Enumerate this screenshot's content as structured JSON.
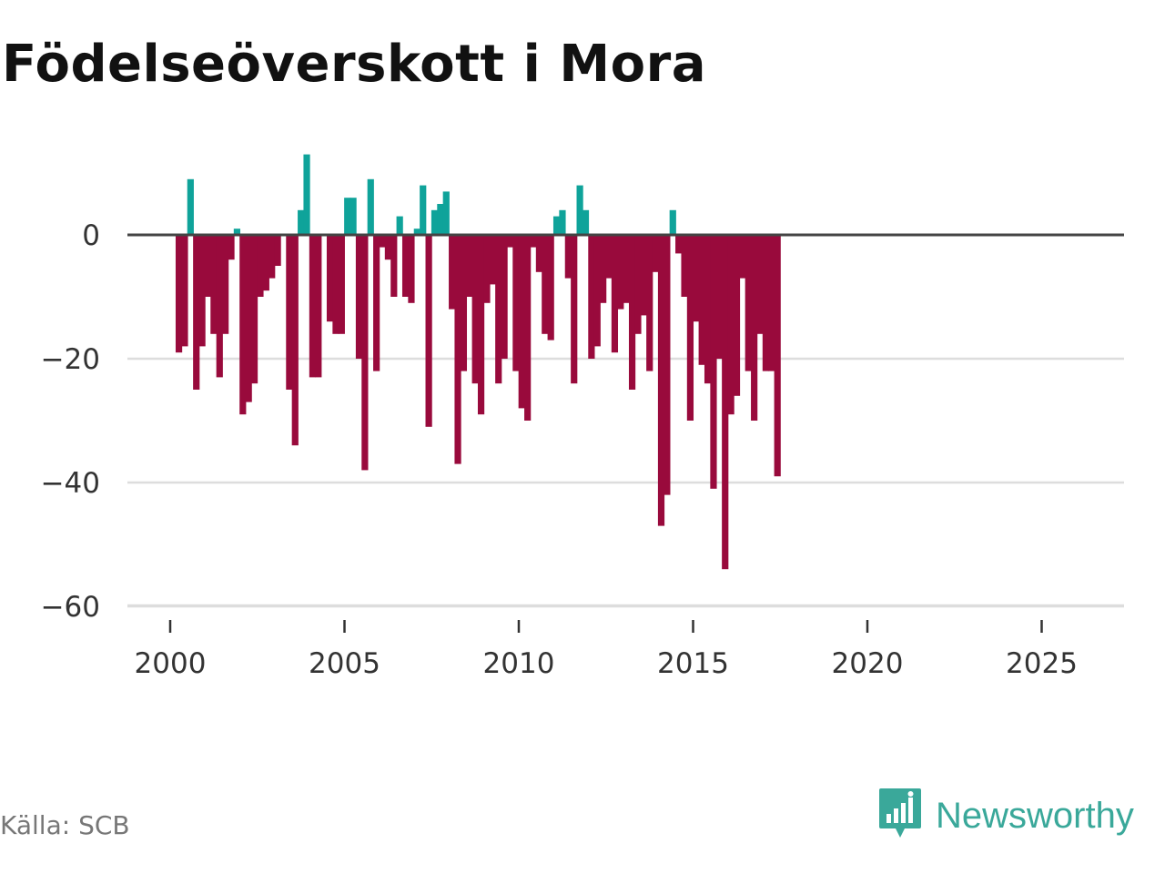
{
  "title": "Födelseöverskott i Mora",
  "source": "Källa: SCB",
  "brand": "Newsworthy",
  "colors": {
    "positive": "#0fa39a",
    "negative": "#990a3c",
    "zero_line": "#444444",
    "grid": "#dddddd",
    "brand": "#3aa89a"
  },
  "chart_data": {
    "type": "bar",
    "title": "Födelseöverskott i Mora",
    "xlabel": "",
    "ylabel": "",
    "x_start_year": 2000.25,
    "x_step_months": 1,
    "x_step_years": 0.1667,
    "xlim": [
      1999.5,
      2026.8
    ],
    "ylim": [
      -60,
      15
    ],
    "xticks": [
      2000,
      2005,
      2010,
      2015,
      2020,
      2025
    ],
    "xtick_labels": [
      "2000",
      "2005",
      "2010",
      "2015",
      "2020",
      "2025"
    ],
    "yticks": [
      0,
      -20,
      -40,
      -60
    ],
    "ytick_labels": [
      "0",
      "−20",
      "−40",
      "−60"
    ],
    "values": [
      -19,
      -18,
      9,
      -25,
      -18,
      -10,
      -16,
      -23,
      -16,
      -4,
      1,
      -29,
      -27,
      -24,
      -10,
      -9,
      -7,
      -5,
      0,
      -25,
      -34,
      4,
      13,
      -23,
      -23,
      0,
      -14,
      -16,
      -16,
      6,
      6,
      -20,
      -38,
      9,
      -22,
      -2,
      -4,
      -10,
      3,
      -10,
      -11,
      1,
      8,
      -31,
      4,
      5,
      7,
      -12,
      -37,
      -22,
      -10,
      -24,
      -29,
      -11,
      -8,
      -24,
      -20,
      -2,
      -22,
      -28,
      -30,
      -2,
      -6,
      -16,
      -17,
      3,
      4,
      -7,
      -24,
      8,
      4,
      -20,
      -18,
      -11,
      -7,
      -19,
      -12,
      -11,
      -25,
      -16,
      -13,
      -22,
      -6,
      -47,
      -42,
      4,
      -3,
      -10,
      -30,
      -14,
      -21,
      -24,
      -41,
      -20,
      -54,
      -29,
      -26,
      -7,
      -22,
      -30,
      -16,
      -22,
      -22,
      -39
    ]
  }
}
